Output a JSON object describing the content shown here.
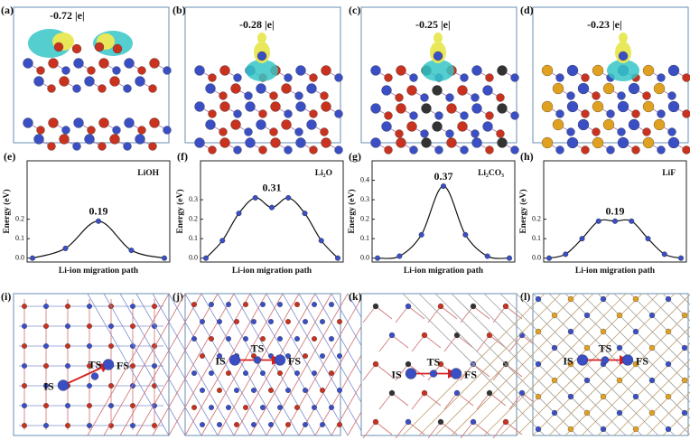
{
  "top_panels": [
    {
      "label": "(a)",
      "charge": "-0.72 |e|"
    },
    {
      "label": "(b)",
      "charge": "-0.28 |e|"
    },
    {
      "label": "(c)",
      "charge": "-0.25 |e|"
    },
    {
      "label": "(d)",
      "charge": "-0.23 |e|"
    }
  ],
  "chart_data": [
    {
      "type": "line",
      "panel_label": "(e)",
      "title": "LiOH",
      "annotation": "0.19",
      "y_label": "Energy (eV)",
      "x_label": "Li-ion migration path",
      "categories": [
        null,
        null,
        null,
        null,
        null
      ],
      "values": [
        0.0,
        0.05,
        0.19,
        0.04,
        0.0
      ],
      "color": "#3b4fc4",
      "ylim": [
        -0.02,
        0.5
      ],
      "yticks": [
        {
          "value": 0,
          "label": "0.0"
        },
        {
          "value": 0.1,
          "label": "0.1"
        },
        {
          "value": 0.2,
          "label": "0.2"
        }
      ]
    },
    {
      "type": "line",
      "panel_label": "(f)",
      "title": "Li₂O",
      "annotation": "0.31",
      "y_label": "Energy (eV)",
      "x_label": "Li-ion migration path",
      "categories": [
        null,
        null,
        null,
        null,
        null,
        null,
        null,
        null,
        null
      ],
      "values": [
        0.0,
        0.09,
        0.23,
        0.31,
        0.26,
        0.31,
        0.23,
        0.09,
        0.0
      ],
      "color": "#3b4fc4",
      "ylim": [
        -0.02,
        0.5
      ],
      "yticks": [
        {
          "value": 0,
          "label": "0.0"
        },
        {
          "value": 0.1,
          "label": "0.1"
        },
        {
          "value": 0.2,
          "label": "0.2"
        },
        {
          "value": 0.3,
          "label": "0.3"
        }
      ]
    },
    {
      "type": "line",
      "panel_label": "(g)",
      "title": "Li₂CO₃",
      "annotation": "0.37",
      "y_label": "Energy (eV)",
      "x_label": "Li-ion migration path",
      "categories": [
        null,
        null,
        null,
        null,
        null,
        null,
        null
      ],
      "values": [
        0.0,
        0.01,
        0.12,
        0.37,
        0.12,
        0.01,
        0.0
      ],
      "color": "#3b4fc4",
      "ylim": [
        -0.02,
        0.5
      ],
      "yticks": [
        {
          "value": 0,
          "label": "0.0"
        },
        {
          "value": 0.1,
          "label": "0.1"
        },
        {
          "value": 0.2,
          "label": "0.2"
        },
        {
          "value": 0.3,
          "label": "0.3"
        },
        {
          "value": 0.4,
          "label": "0.4"
        }
      ]
    },
    {
      "type": "line",
      "panel_label": "(h)",
      "title": "LiF",
      "annotation": "0.19",
      "y_label": "Energy (eV)",
      "x_label": "Li-ion migration path",
      "categories": [
        null,
        null,
        null,
        null,
        null,
        null,
        null,
        null,
        null
      ],
      "values": [
        0.0,
        0.02,
        0.1,
        0.19,
        0.19,
        0.19,
        0.1,
        0.02,
        0.0
      ],
      "color": "#3b4fc4",
      "ylim": [
        -0.02,
        0.5
      ],
      "yticks": [
        {
          "value": 0,
          "label": "0.0"
        },
        {
          "value": 0.1,
          "label": "0.1"
        },
        {
          "value": 0.2,
          "label": "0.2"
        }
      ]
    }
  ],
  "bottom_panels": [
    {
      "label": "(i)",
      "sites": [
        "IS",
        "TS",
        "FS"
      ]
    },
    {
      "label": "(j)",
      "sites": [
        "IS",
        "TS",
        "FS"
      ]
    },
    {
      "label": "(k)",
      "sites": [
        "IS",
        "TS",
        "FS"
      ]
    },
    {
      "label": "(l)",
      "sites": [
        "IS",
        "TS",
        "FS"
      ]
    }
  ]
}
